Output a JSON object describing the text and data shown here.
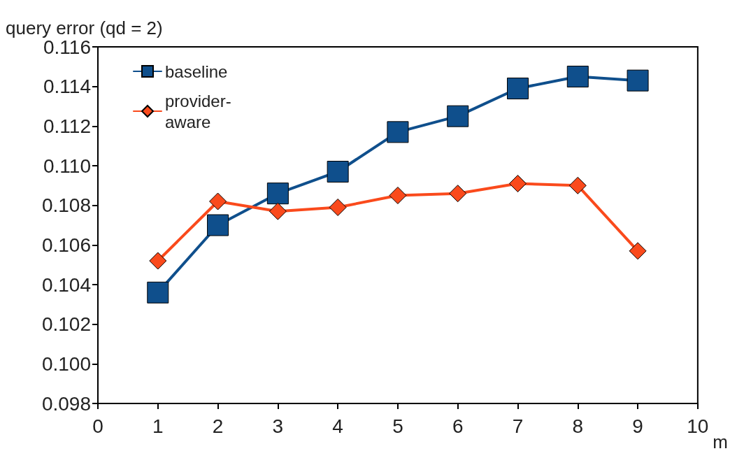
{
  "chart_data": {
    "type": "line",
    "ylabel": "query error (qd = 2)",
    "xlabel": "m",
    "x": [
      1,
      2,
      3,
      4,
      5,
      6,
      7,
      8,
      9
    ],
    "series": [
      {
        "name": "baseline",
        "color": "#0f4f8c",
        "marker": "square",
        "values": [
          0.1036,
          0.107,
          0.1086,
          0.1097,
          0.1117,
          0.1125,
          0.1139,
          0.1145,
          0.1143
        ]
      },
      {
        "name": "provider-aware",
        "color": "#fa4a1c",
        "marker": "diamond",
        "values": [
          0.1052,
          0.1082,
          0.1077,
          0.1079,
          0.1085,
          0.1086,
          0.1091,
          0.109,
          0.1057
        ]
      }
    ],
    "xlim": [
      0,
      10
    ],
    "xticks": [
      0,
      1,
      2,
      3,
      4,
      5,
      6,
      7,
      8,
      9,
      10
    ],
    "ylim": [
      0.098,
      0.116
    ],
    "yticks": [
      0.098,
      {
        "value": 0.1,
        "label": "0.100"
      },
      0.102,
      0.104,
      0.106,
      0.108,
      {
        "value": 0.11,
        "label": "0.110"
      },
      0.112,
      0.114,
      0.116
    ],
    "grid": false,
    "legend": "top left",
    "line_style": "solid"
  }
}
